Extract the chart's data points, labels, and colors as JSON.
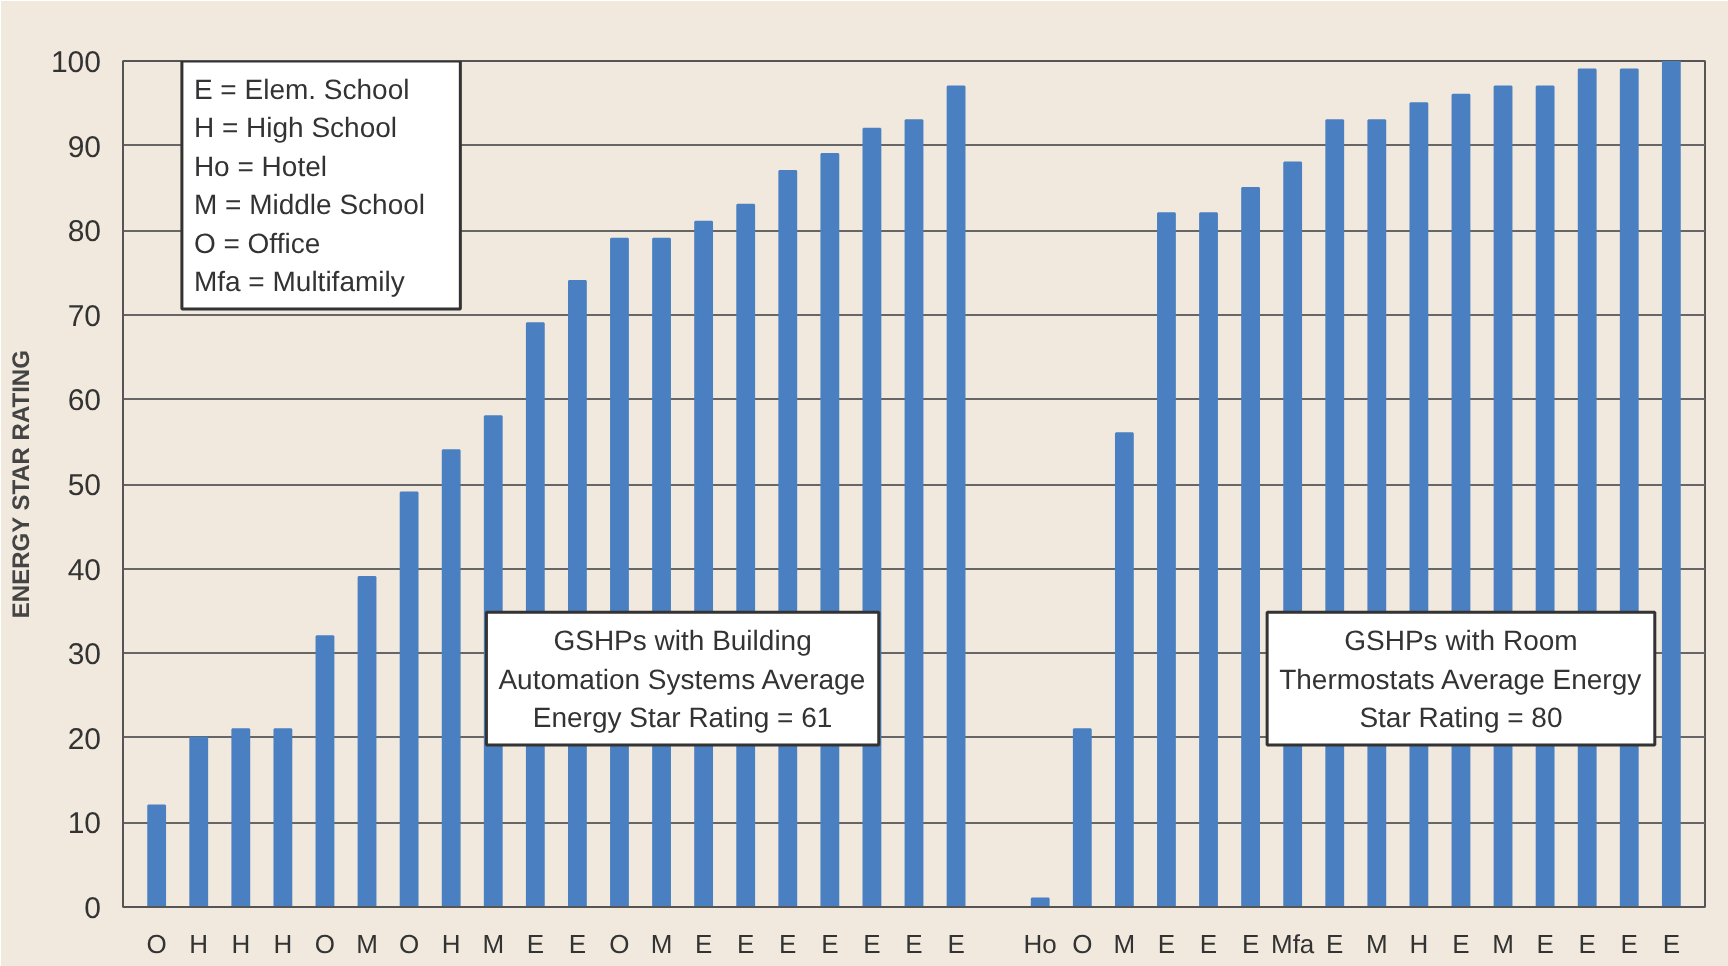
{
  "chart_data": {
    "type": "bar",
    "ylabel": "ENERGY STAR RATING",
    "categories": [
      "O",
      "H",
      "H",
      "H",
      "O",
      "M",
      "O",
      "H",
      "M",
      "E",
      "E",
      "O",
      "M",
      "E",
      "E",
      "E",
      "E",
      "E",
      "E",
      "E",
      null,
      "Ho",
      "O",
      "M",
      "E",
      "E",
      "E",
      "Mfa",
      "E",
      "M",
      "H",
      "E",
      "M",
      "E",
      "E",
      "E",
      "E"
    ],
    "values": [
      12,
      20,
      21,
      21,
      32,
      39,
      49,
      54,
      58,
      69,
      74,
      79,
      79,
      81,
      83,
      87,
      89,
      92,
      93,
      97,
      null,
      1,
      21,
      56,
      82,
      82,
      85,
      88,
      93,
      93,
      95,
      96,
      97,
      97,
      99,
      99,
      100
    ],
    "color": "#4a80c2",
    "ylim": [
      0,
      100
    ],
    "yticks": [
      0,
      10,
      20,
      30,
      40,
      50,
      60,
      70,
      80,
      90,
      100
    ],
    "grid": "y",
    "annotations": [
      "E   =  Elem. School\nH   =  High School\nHo  =  Hotel\nM   =  Middle School\nO   =  Office\nMfa =  Multifamily",
      "GSHPs with Building\nAutomation Systems Average\nEnergy Star Rating = 61",
      "GSHPs with Room\nThermostats Average Energy\nStar Rating = 80"
    ]
  }
}
